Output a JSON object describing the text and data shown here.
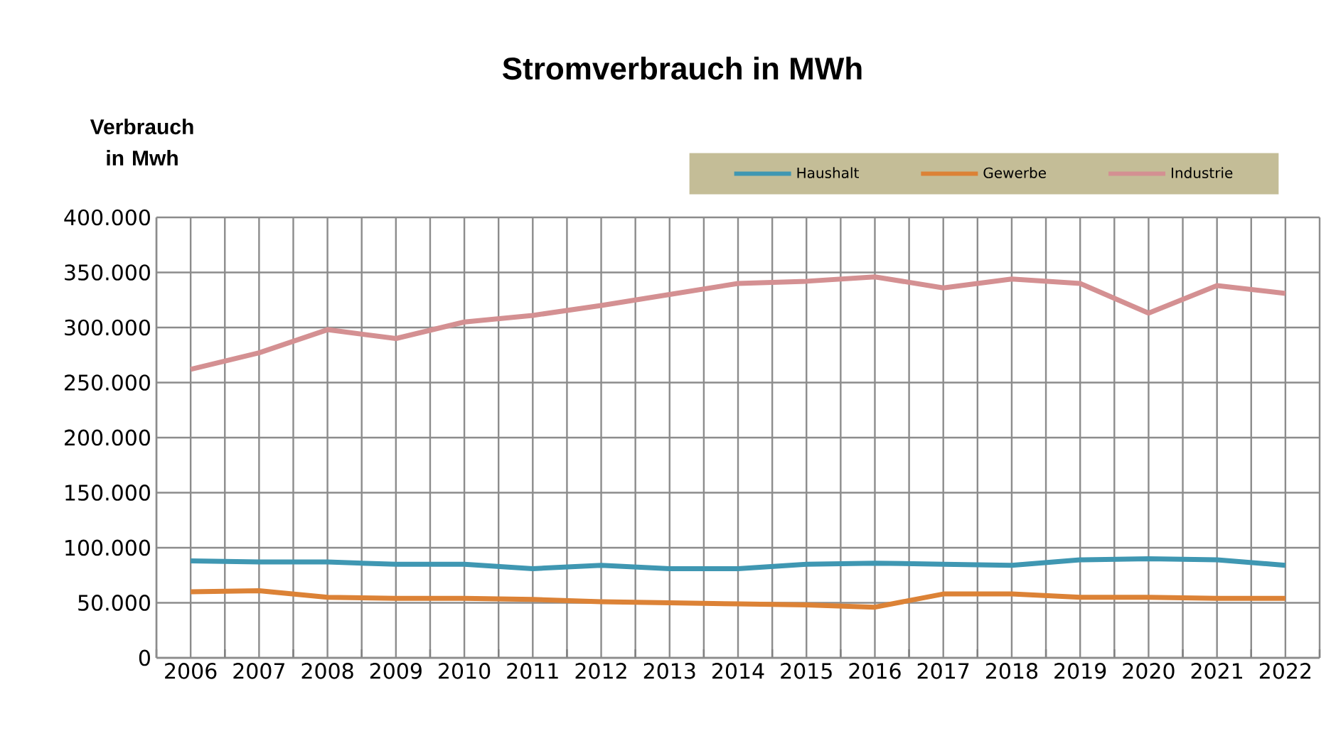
{
  "chart_data": {
    "type": "line",
    "title": "Stromverbrauch in MWh",
    "ylabel": "Verbrauch in Mwh",
    "categories": [
      "2006",
      "2007",
      "2008",
      "2009",
      "2010",
      "2011",
      "2012",
      "2013",
      "2014",
      "2015",
      "2016",
      "2017",
      "2018",
      "2019",
      "2020",
      "2021",
      "2022"
    ],
    "series": [
      {
        "name": "Haushalt",
        "color": "#3f97b2",
        "values": [
          88000,
          87000,
          87000,
          85000,
          85000,
          81000,
          84000,
          81000,
          81000,
          85000,
          86000,
          85000,
          84000,
          89000,
          90000,
          89000,
          84000
        ]
      },
      {
        "name": "Gewerbe",
        "color": "#dc8236",
        "values": [
          60000,
          61000,
          55000,
          54000,
          54000,
          53000,
          51000,
          50000,
          49000,
          48000,
          46000,
          58000,
          58000,
          55000,
          55000,
          54000,
          54000
        ]
      },
      {
        "name": "Industrie",
        "color": "#d49092",
        "values": [
          262000,
          277000,
          298000,
          290000,
          305000,
          311000,
          320000,
          330000,
          340000,
          342000,
          346000,
          336000,
          344000,
          340000,
          313000,
          338000,
          331000
        ]
      }
    ],
    "ylim": [
      0,
      400000
    ],
    "yticks": [
      {
        "value": 0,
        "label": "0"
      },
      {
        "value": 50000,
        "label": "50.000"
      },
      {
        "value": 100000,
        "label": "100.000"
      },
      {
        "value": 150000,
        "label": "150.000"
      },
      {
        "value": 200000,
        "label": "200.000"
      },
      {
        "value": 250000,
        "label": "250.000"
      },
      {
        "value": 300000,
        "label": "300.000"
      },
      {
        "value": 350000,
        "label": "350.000"
      },
      {
        "value": 400000,
        "label": "400.000"
      }
    ],
    "grid": true,
    "legend": "top right",
    "marker": "none",
    "line_style": "solid"
  }
}
